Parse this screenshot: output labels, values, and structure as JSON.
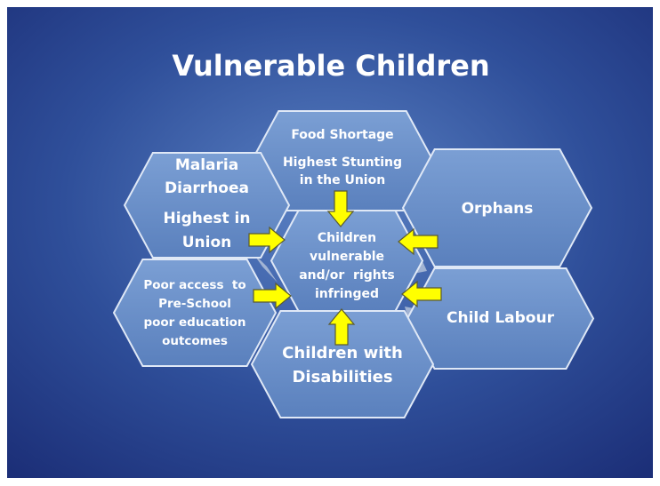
{
  "title": "Vulnerable Children",
  "nodes": [
    {
      "lines": [
        "Food Shortage",
        "Highest Stunting",
        "in the Union"
      ]
    },
    {
      "lines": [
        "Malaria",
        "Diarrhoea",
        "Highest in",
        "Union"
      ]
    },
    {
      "lines": [
        "Orphans"
      ]
    },
    {
      "lines": [
        "Poor access  to",
        "Pre-School",
        "poor education",
        "outcomes"
      ]
    },
    {
      "lines": [
        "Child Labour"
      ]
    },
    {
      "lines": [
        "Children with",
        "Disabilities"
      ]
    },
    {
      "lines": [
        "Children",
        "vulnerable",
        "and/or  rights",
        "infringed"
      ]
    }
  ]
}
